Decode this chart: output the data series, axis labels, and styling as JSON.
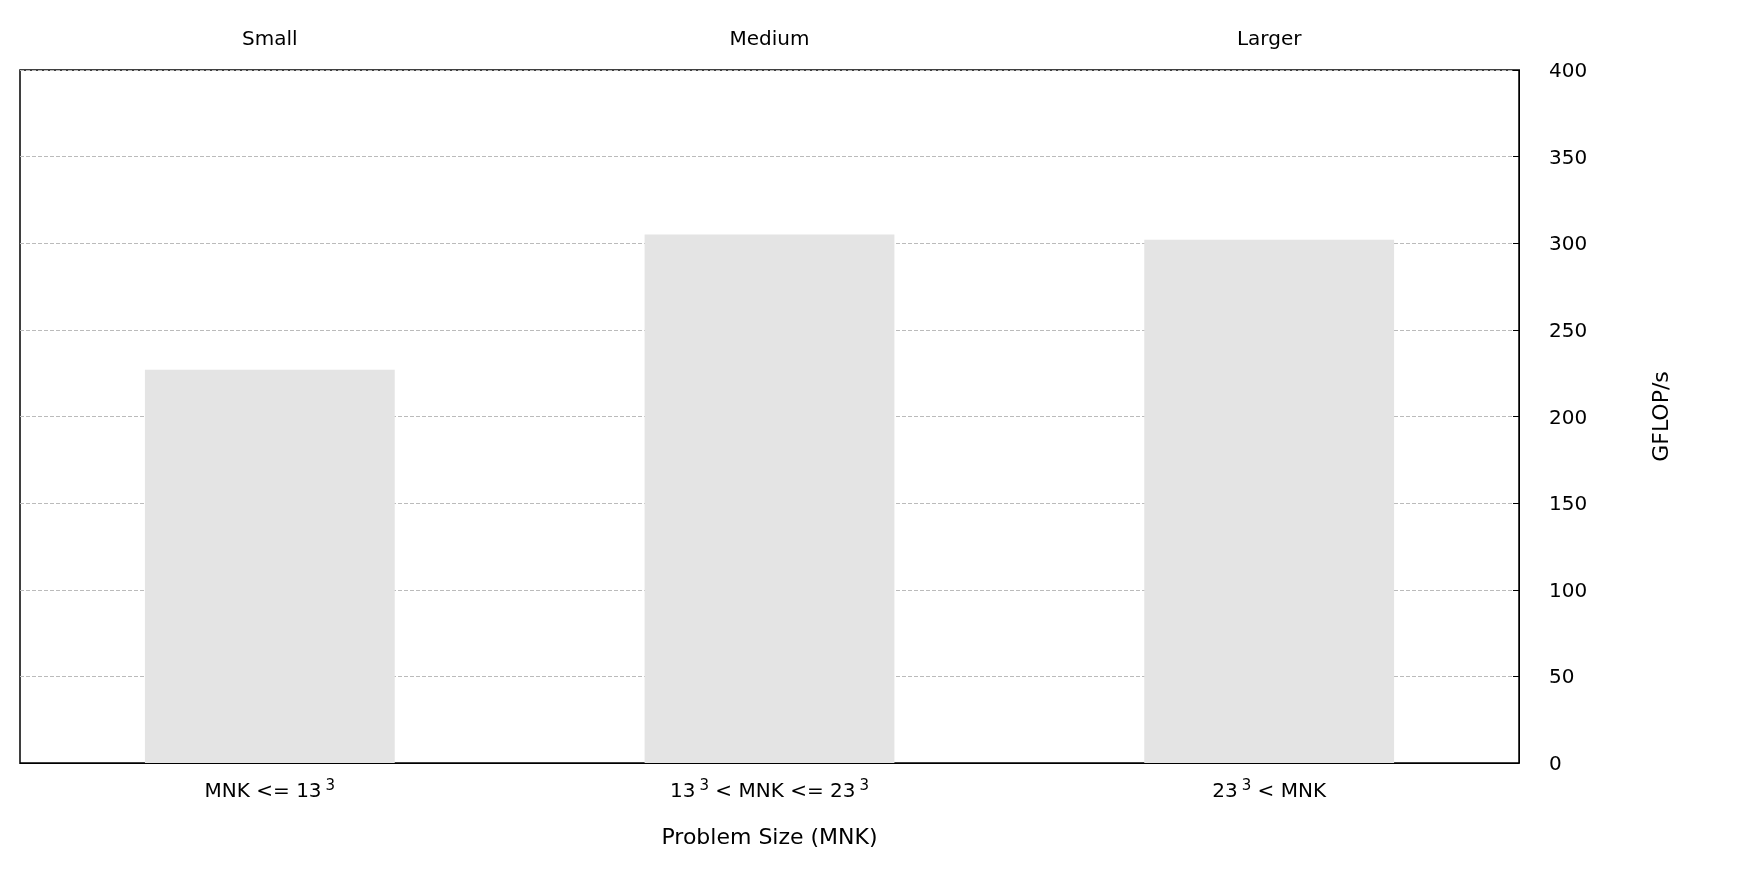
{
  "chart_data": {
    "type": "bar",
    "xlabel": "Problem Size (MNK)",
    "ylabel": "GFLOP/s",
    "categories": [
      "MNK <= 13$^{3}$",
      "13$^{3}$ < MNK <= 23$^{3}$",
      "23$^{3}$ < MNK"
    ],
    "values": [
      227,
      305,
      302
    ],
    "color": "#e4e4e4",
    "ylim": [
      0,
      400
    ],
    "yticks": [
      0,
      50,
      100,
      150,
      200,
      250,
      300,
      350,
      400
    ],
    "grid": "y",
    "annotations": [
      "Small",
      "Medium",
      "Larger"
    ]
  }
}
